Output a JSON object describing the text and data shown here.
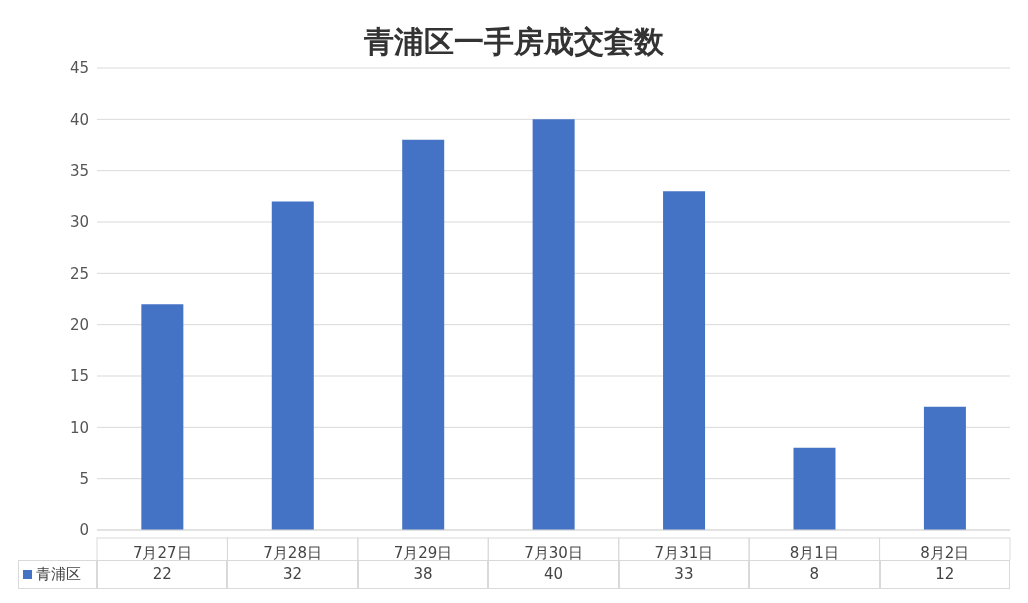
{
  "chart_data": {
    "type": "bar",
    "title": "青浦区一手房成交套数",
    "categories": [
      "7月27日",
      "7月28日",
      "7月29日",
      "7月30日",
      "7月31日",
      "8月1日",
      "8月2日"
    ],
    "series": [
      {
        "name": "青浦区",
        "color": "#4472c4",
        "values": [
          22,
          32,
          38,
          40,
          33,
          8,
          12
        ]
      }
    ],
    "ylim": [
      0,
      45
    ],
    "yticks": [
      0,
      5,
      10,
      15,
      20,
      25,
      30,
      35,
      40,
      45
    ],
    "grid": "y",
    "legend": "bottom",
    "data_labels": true
  }
}
